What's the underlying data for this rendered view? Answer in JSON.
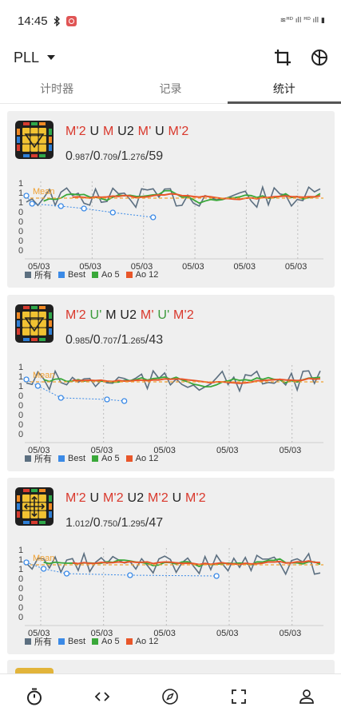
{
  "status_bar": {
    "time": "14:45",
    "bluetooth_icon": "bluetooth-icon",
    "vpn_icon": "vpn-icon",
    "right_text": "≋ᴴᴰ ıll ᴴᴰ ıll ▮"
  },
  "app_bar": {
    "puzzle": "PLL",
    "crop_icon": "crop-icon",
    "theme_icon": "theme-icon"
  },
  "tabs": [
    {
      "label": "计时器",
      "active": false
    },
    {
      "label": "记录",
      "active": false
    },
    {
      "label": "统计",
      "active": true
    }
  ],
  "colors": {
    "all": "#5c6f80",
    "best": "#3b8ae6",
    "ao5": "#3aa83a",
    "ao12": "#e8562a",
    "mean": "#f0a030"
  },
  "legend": {
    "all": "所有",
    "best": "Best",
    "ao5": "Ao 5",
    "ao12": "Ao 12",
    "mean": "Mean"
  },
  "cards": [
    {
      "alg": [
        {
          "t": "M'2",
          "c": "r"
        },
        {
          "t": "U",
          "c": "k"
        },
        {
          "t": "M",
          "c": "r"
        },
        {
          "t": "U2",
          "c": "k"
        },
        {
          "t": "M'",
          "c": "r"
        },
        {
          "t": "U",
          "c": "k"
        },
        {
          "t": "M'2",
          "c": "r"
        }
      ],
      "best": "0",
      "best_dec": ".987",
      "mean": "0",
      "mean_dec": ".709",
      "worst": "1",
      "worst_dec": ".276",
      "count": "59",
      "y_ticks": [
        "1",
        "1",
        "1",
        "0",
        "0",
        "0",
        "0",
        "0"
      ],
      "x_labels": [
        "05/03",
        "05/03",
        "05/03",
        "05/03",
        "05/03",
        "05/03"
      ]
    },
    {
      "alg": [
        {
          "t": "M'2",
          "c": "r"
        },
        {
          "t": "U'",
          "c": "g"
        },
        {
          "t": "M",
          "c": "k"
        },
        {
          "t": "U2",
          "c": "k"
        },
        {
          "t": "M'",
          "c": "r"
        },
        {
          "t": "U'",
          "c": "g"
        },
        {
          "t": "M'2",
          "c": "r"
        }
      ],
      "best": "0",
      "best_dec": ".985",
      "mean": "0",
      "mean_dec": ".707",
      "worst": "1",
      "worst_dec": ".265",
      "count": "43",
      "y_ticks": [
        "1",
        "1",
        "1",
        "0",
        "0",
        "0",
        "0",
        "0"
      ],
      "x_labels": [
        "05/03",
        "05/03",
        "05/03",
        "05/03",
        "05/03"
      ]
    },
    {
      "alg": [
        {
          "t": "M'2",
          "c": "r"
        },
        {
          "t": "U",
          "c": "k"
        },
        {
          "t": "M'2",
          "c": "r"
        },
        {
          "t": "U2",
          "c": "k"
        },
        {
          "t": "M'2",
          "c": "r"
        },
        {
          "t": "U",
          "c": "k"
        },
        {
          "t": "M'2",
          "c": "r"
        }
      ],
      "best": "1",
      "best_dec": ".012",
      "mean": "0",
      "mean_dec": ".750",
      "worst": "1",
      "worst_dec": ".295",
      "count": "47",
      "y_ticks": [
        "1",
        "1",
        "1",
        "0",
        "0",
        "0",
        "0",
        "0"
      ],
      "x_labels": [
        "05/03",
        "05/03",
        "05/03",
        "05/03",
        "05/03"
      ]
    }
  ],
  "bottom_nav": [
    {
      "name": "timer-icon"
    },
    {
      "name": "code-icon"
    },
    {
      "name": "compass-icon"
    },
    {
      "name": "fullscreen-icon"
    },
    {
      "name": "profile-icon"
    }
  ]
}
